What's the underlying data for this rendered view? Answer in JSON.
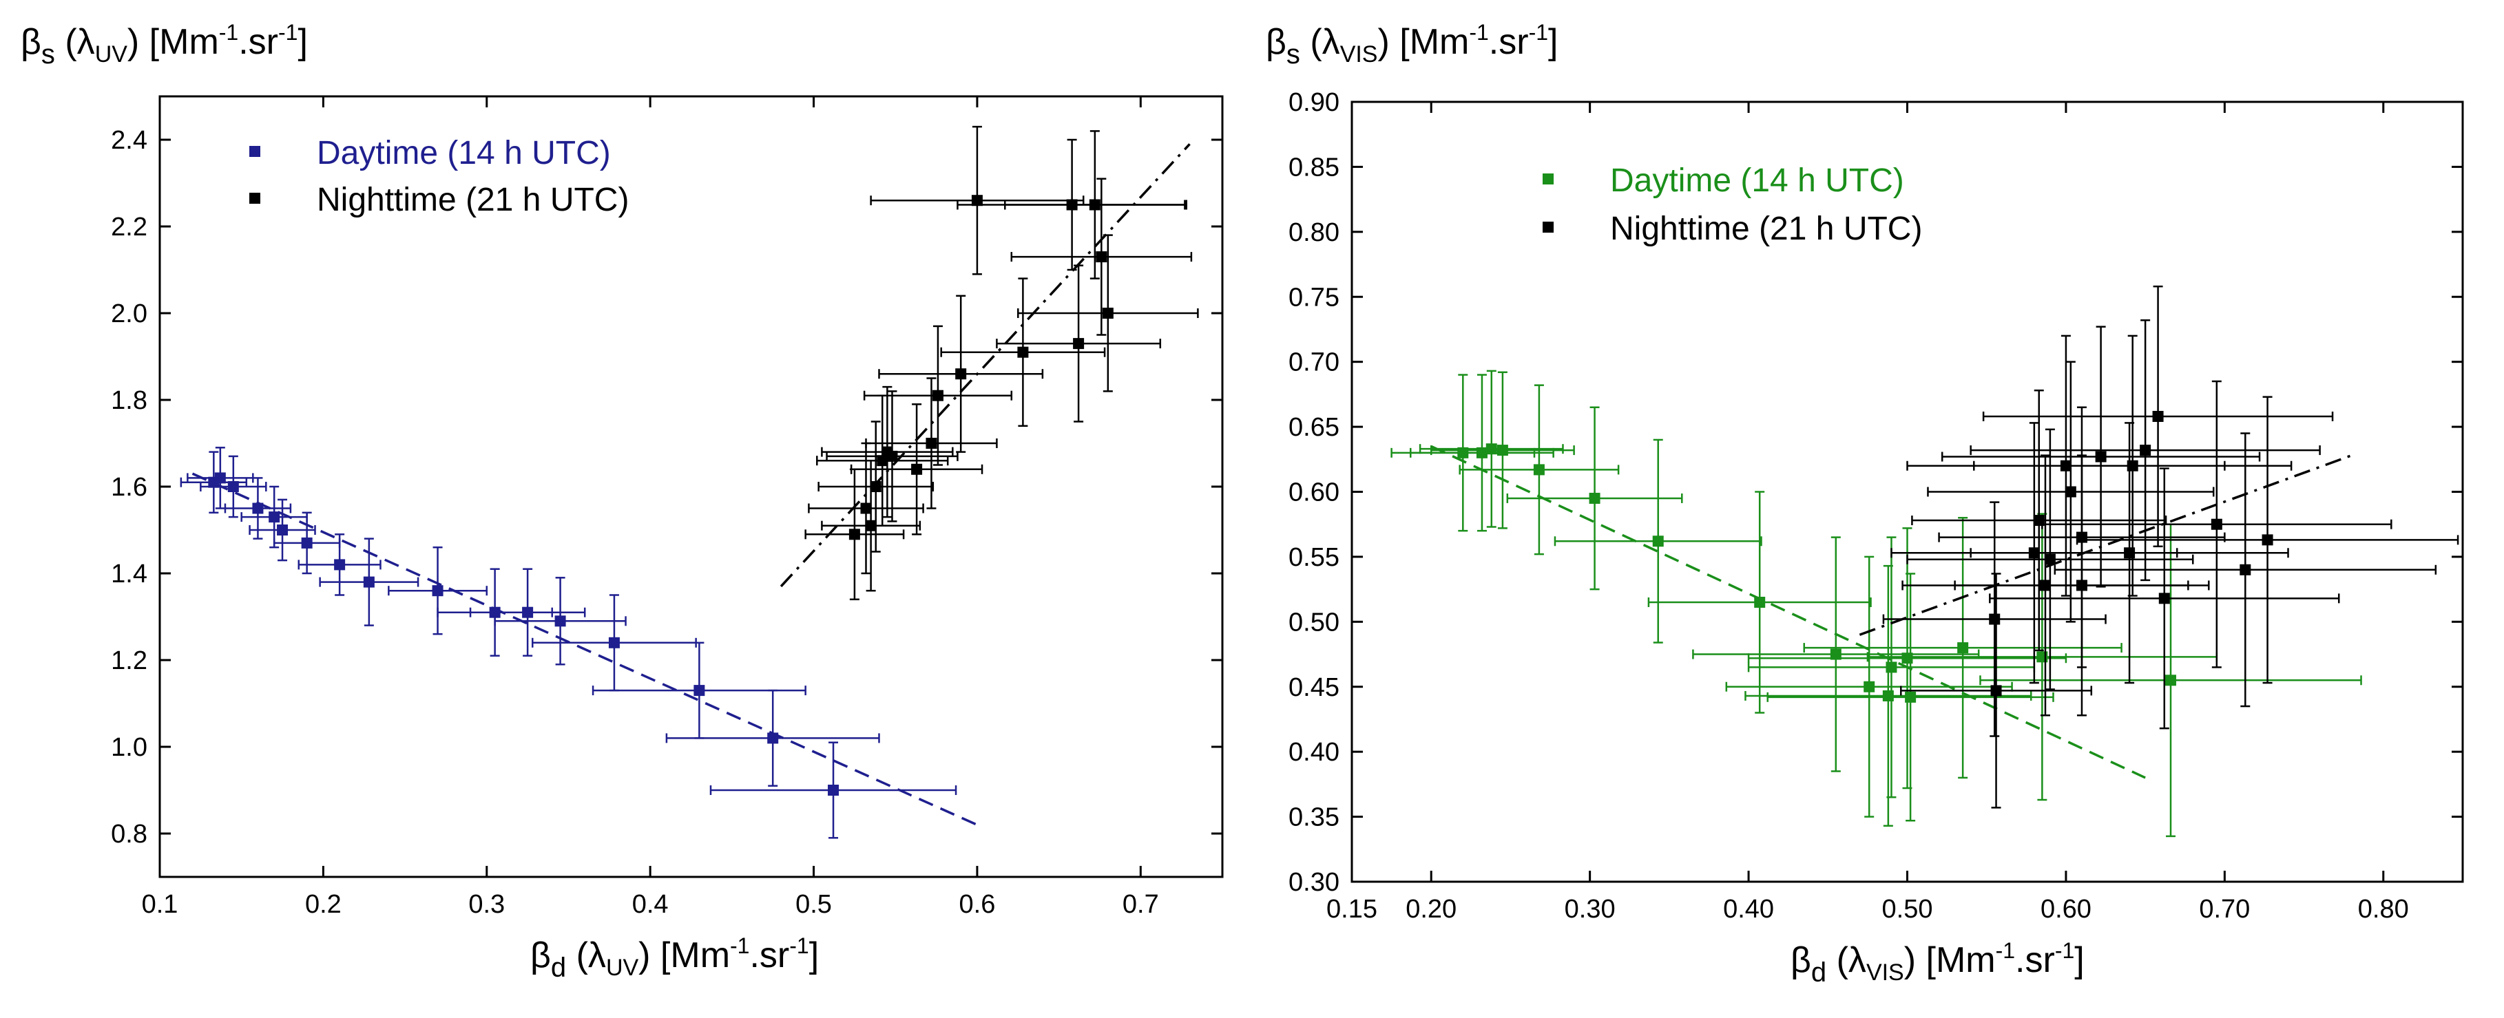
{
  "chart_data": [
    {
      "type": "scatter",
      "xlabel": "βd (λUV) [Mm-1.sr-1]",
      "ylabel": "βs (λUV) [Mm-1.sr-1]",
      "xlabel_parts": {
        "sym": "β",
        "sym_sub": "d",
        "paren_open": " (λ",
        "lam_sub": "UV",
        "paren_close": ") [Mm",
        "unit_sup": "-1",
        "unit_mid": ".sr",
        "unit_end": "]"
      },
      "ylabel_parts": {
        "sym": "β",
        "sym_sub": "s",
        "paren_open": " (λ",
        "lam_sub": "UV",
        "paren_close": ") [Mm",
        "unit_sup": "-1",
        "unit_mid": ".sr",
        "unit_end": "]"
      },
      "xlim": [
        0.1,
        0.75
      ],
      "ylim": [
        0.7,
        2.5
      ],
      "xticks": [
        0.1,
        0.2,
        0.3,
        0.4,
        0.5,
        0.6,
        0.7
      ],
      "xticklabels": [
        "0.1",
        "0.2",
        "0.3",
        "0.4",
        "0.5",
        "0.6",
        "0.7"
      ],
      "yticks": [
        0.8,
        1.0,
        1.2,
        1.4,
        1.6,
        1.8,
        2.0,
        2.2,
        2.4
      ],
      "yticklabels": [
        "0.8",
        "1.0",
        "1.2",
        "1.4",
        "1.6",
        "1.8",
        "2.0",
        "2.2",
        "2.4"
      ],
      "grid": false,
      "legend_position": "top-left",
      "series": [
        {
          "name": "Daytime (14 h UTC)",
          "color": "#1f1f8f",
          "fit": {
            "style": "dashed",
            "x": [
              0.12,
              0.6
            ],
            "y": [
              1.63,
              0.82
            ]
          },
          "points": [
            {
              "x": 0.133,
              "y": 1.61,
              "xe": 0.02,
              "ye": 0.07
            },
            {
              "x": 0.137,
              "y": 1.62,
              "xe": 0.02,
              "ye": 0.07
            },
            {
              "x": 0.145,
              "y": 1.6,
              "xe": 0.02,
              "ye": 0.07
            },
            {
              "x": 0.16,
              "y": 1.55,
              "xe": 0.02,
              "ye": 0.07
            },
            {
              "x": 0.17,
              "y": 1.53,
              "xe": 0.02,
              "ye": 0.07
            },
            {
              "x": 0.175,
              "y": 1.5,
              "xe": 0.02,
              "ye": 0.07
            },
            {
              "x": 0.19,
              "y": 1.47,
              "xe": 0.02,
              "ye": 0.07
            },
            {
              "x": 0.21,
              "y": 1.42,
              "xe": 0.025,
              "ye": 0.07
            },
            {
              "x": 0.228,
              "y": 1.38,
              "xe": 0.03,
              "ye": 0.1
            },
            {
              "x": 0.27,
              "y": 1.36,
              "xe": 0.03,
              "ye": 0.1
            },
            {
              "x": 0.305,
              "y": 1.31,
              "xe": 0.035,
              "ye": 0.1
            },
            {
              "x": 0.325,
              "y": 1.31,
              "xe": 0.035,
              "ye": 0.1
            },
            {
              "x": 0.345,
              "y": 1.29,
              "xe": 0.04,
              "ye": 0.1
            },
            {
              "x": 0.378,
              "y": 1.24,
              "xe": 0.05,
              "ye": 0.11
            },
            {
              "x": 0.43,
              "y": 1.13,
              "xe": 0.065,
              "ye": 0.11
            },
            {
              "x": 0.475,
              "y": 1.02,
              "xe": 0.065,
              "ye": 0.11
            },
            {
              "x": 0.512,
              "y": 0.9,
              "xe": 0.075,
              "ye": 0.11
            }
          ]
        },
        {
          "name": "Nighttime (21 h UTC)",
          "color": "#000000",
          "fit": {
            "style": "dashdot",
            "x": [
              0.48,
              0.73
            ],
            "y": [
              1.37,
              2.39
            ]
          },
          "points": [
            {
              "x": 0.525,
              "y": 1.49,
              "xe": 0.03,
              "ye": 0.15
            },
            {
              "x": 0.532,
              "y": 1.55,
              "xe": 0.035,
              "ye": 0.15
            },
            {
              "x": 0.535,
              "y": 1.51,
              "xe": 0.03,
              "ye": 0.15
            },
            {
              "x": 0.538,
              "y": 1.6,
              "xe": 0.035,
              "ye": 0.15
            },
            {
              "x": 0.542,
              "y": 1.66,
              "xe": 0.04,
              "ye": 0.15
            },
            {
              "x": 0.545,
              "y": 1.68,
              "xe": 0.04,
              "ye": 0.15
            },
            {
              "x": 0.548,
              "y": 1.67,
              "xe": 0.04,
              "ye": 0.15
            },
            {
              "x": 0.563,
              "y": 1.64,
              "xe": 0.04,
              "ye": 0.15
            },
            {
              "x": 0.572,
              "y": 1.7,
              "xe": 0.04,
              "ye": 0.15
            },
            {
              "x": 0.576,
              "y": 1.81,
              "xe": 0.045,
              "ye": 0.16
            },
            {
              "x": 0.59,
              "y": 1.86,
              "xe": 0.05,
              "ye": 0.18
            },
            {
              "x": 0.6,
              "y": 2.26,
              "xe": 0.065,
              "ye": 0.17
            },
            {
              "x": 0.628,
              "y": 1.91,
              "xe": 0.05,
              "ye": 0.17
            },
            {
              "x": 0.658,
              "y": 2.25,
              "xe": 0.07,
              "ye": 0.15
            },
            {
              "x": 0.662,
              "y": 1.93,
              "xe": 0.05,
              "ye": 0.18
            },
            {
              "x": 0.672,
              "y": 2.25,
              "xe": 0.055,
              "ye": 0.17
            },
            {
              "x": 0.676,
              "y": 2.13,
              "xe": 0.055,
              "ye": 0.18
            },
            {
              "x": 0.68,
              "y": 2.0,
              "xe": 0.055,
              "ye": 0.18
            }
          ]
        }
      ]
    },
    {
      "type": "scatter",
      "xlabel": "βd (λVIS) [Mm-1.sr-1]",
      "ylabel": "βs (λVIS) [Mm-1.sr-1]",
      "xlabel_parts": {
        "sym": "β",
        "sym_sub": "d",
        "paren_open": " (λ",
        "lam_sub": "VIS",
        "paren_close": ") [Mm",
        "unit_sup": "-1",
        "unit_mid": ".sr",
        "unit_end": "]"
      },
      "ylabel_parts": {
        "sym": "β",
        "sym_sub": "s",
        "paren_open": " (λ",
        "lam_sub": "VIS",
        "paren_close": ") [Mm",
        "unit_sup": "-1",
        "unit_mid": ".sr",
        "unit_end": "]"
      },
      "xlim": [
        0.15,
        0.85
      ],
      "ylim": [
        0.3,
        0.9
      ],
      "xticks": [
        0.15,
        0.2,
        0.3,
        0.4,
        0.5,
        0.6,
        0.7,
        0.8
      ],
      "xticklabels": [
        "0.15",
        "0.20",
        "0.30",
        "0.40",
        "0.50",
        "0.60",
        "0.70",
        "0.80"
      ],
      "yticks": [
        0.3,
        0.35,
        0.4,
        0.45,
        0.5,
        0.55,
        0.6,
        0.65,
        0.7,
        0.75,
        0.8,
        0.85,
        0.9
      ],
      "yticklabels": [
        "0.30",
        "0.35",
        "0.40",
        "0.45",
        "0.50",
        "0.55",
        "0.60",
        "0.65",
        "0.70",
        "0.75",
        "0.80",
        "0.85",
        "0.90"
      ],
      "grid": false,
      "legend_position": "top-left",
      "series": [
        {
          "name": "Daytime (14 h UTC)",
          "color": "#1a8f1a",
          "fit": {
            "style": "dashed",
            "x": [
              0.2,
              0.65
            ],
            "y": [
              0.635,
              0.38
            ]
          },
          "points": [
            {
              "x": 0.22,
              "y": 0.63,
              "xe": 0.045,
              "ye": 0.06
            },
            {
              "x": 0.232,
              "y": 0.63,
              "xe": 0.045,
              "ye": 0.06
            },
            {
              "x": 0.238,
              "y": 0.633,
              "xe": 0.045,
              "ye": 0.06
            },
            {
              "x": 0.245,
              "y": 0.632,
              "xe": 0.045,
              "ye": 0.06
            },
            {
              "x": 0.268,
              "y": 0.617,
              "xe": 0.05,
              "ye": 0.065
            },
            {
              "x": 0.303,
              "y": 0.595,
              "xe": 0.055,
              "ye": 0.07
            },
            {
              "x": 0.343,
              "y": 0.562,
              "xe": 0.065,
              "ye": 0.078
            },
            {
              "x": 0.407,
              "y": 0.515,
              "xe": 0.07,
              "ye": 0.085
            },
            {
              "x": 0.455,
              "y": 0.475,
              "xe": 0.09,
              "ye": 0.09
            },
            {
              "x": 0.476,
              "y": 0.45,
              "xe": 0.09,
              "ye": 0.1
            },
            {
              "x": 0.488,
              "y": 0.443,
              "xe": 0.09,
              "ye": 0.1
            },
            {
              "x": 0.49,
              "y": 0.465,
              "xe": 0.09,
              "ye": 0.1
            },
            {
              "x": 0.5,
              "y": 0.472,
              "xe": 0.1,
              "ye": 0.1
            },
            {
              "x": 0.502,
              "y": 0.442,
              "xe": 0.09,
              "ye": 0.095
            },
            {
              "x": 0.535,
              "y": 0.48,
              "xe": 0.1,
              "ye": 0.1
            },
            {
              "x": 0.585,
              "y": 0.473,
              "xe": 0.11,
              "ye": 0.11
            },
            {
              "x": 0.666,
              "y": 0.455,
              "xe": 0.12,
              "ye": 0.12
            }
          ]
        },
        {
          "name": "Nighttime (21 h UTC)",
          "color": "#000000",
          "fit": {
            "style": "dashdot",
            "x": [
              0.47,
              0.78
            ],
            "y": [
              0.49,
              0.628
            ]
          },
          "points": [
            {
              "x": 0.555,
              "y": 0.502,
              "xe": 0.07,
              "ye": 0.09
            },
            {
              "x": 0.556,
              "y": 0.447,
              "xe": 0.06,
              "ye": 0.09
            },
            {
              "x": 0.58,
              "y": 0.553,
              "xe": 0.09,
              "ye": 0.1
            },
            {
              "x": 0.583,
              "y": 0.578,
              "xe": 0.08,
              "ye": 0.1
            },
            {
              "x": 0.587,
              "y": 0.528,
              "xe": 0.09,
              "ye": 0.1
            },
            {
              "x": 0.59,
              "y": 0.548,
              "xe": 0.09,
              "ye": 0.1
            },
            {
              "x": 0.6,
              "y": 0.62,
              "xe": 0.1,
              "ye": 0.1
            },
            {
              "x": 0.603,
              "y": 0.6,
              "xe": 0.09,
              "ye": 0.1
            },
            {
              "x": 0.61,
              "y": 0.565,
              "xe": 0.09,
              "ye": 0.1
            },
            {
              "x": 0.61,
              "y": 0.528,
              "xe": 0.08,
              "ye": 0.1
            },
            {
              "x": 0.622,
              "y": 0.627,
              "xe": 0.1,
              "ye": 0.1
            },
            {
              "x": 0.64,
              "y": 0.553,
              "xe": 0.1,
              "ye": 0.1
            },
            {
              "x": 0.642,
              "y": 0.62,
              "xe": 0.1,
              "ye": 0.1
            },
            {
              "x": 0.65,
              "y": 0.632,
              "xe": 0.11,
              "ye": 0.1
            },
            {
              "x": 0.658,
              "y": 0.658,
              "xe": 0.11,
              "ye": 0.1
            },
            {
              "x": 0.662,
              "y": 0.518,
              "xe": 0.11,
              "ye": 0.1
            },
            {
              "x": 0.695,
              "y": 0.575,
              "xe": 0.11,
              "ye": 0.11
            },
            {
              "x": 0.713,
              "y": 0.54,
              "xe": 0.12,
              "ye": 0.105
            },
            {
              "x": 0.727,
              "y": 0.563,
              "xe": 0.12,
              "ye": 0.11
            }
          ]
        }
      ]
    }
  ]
}
